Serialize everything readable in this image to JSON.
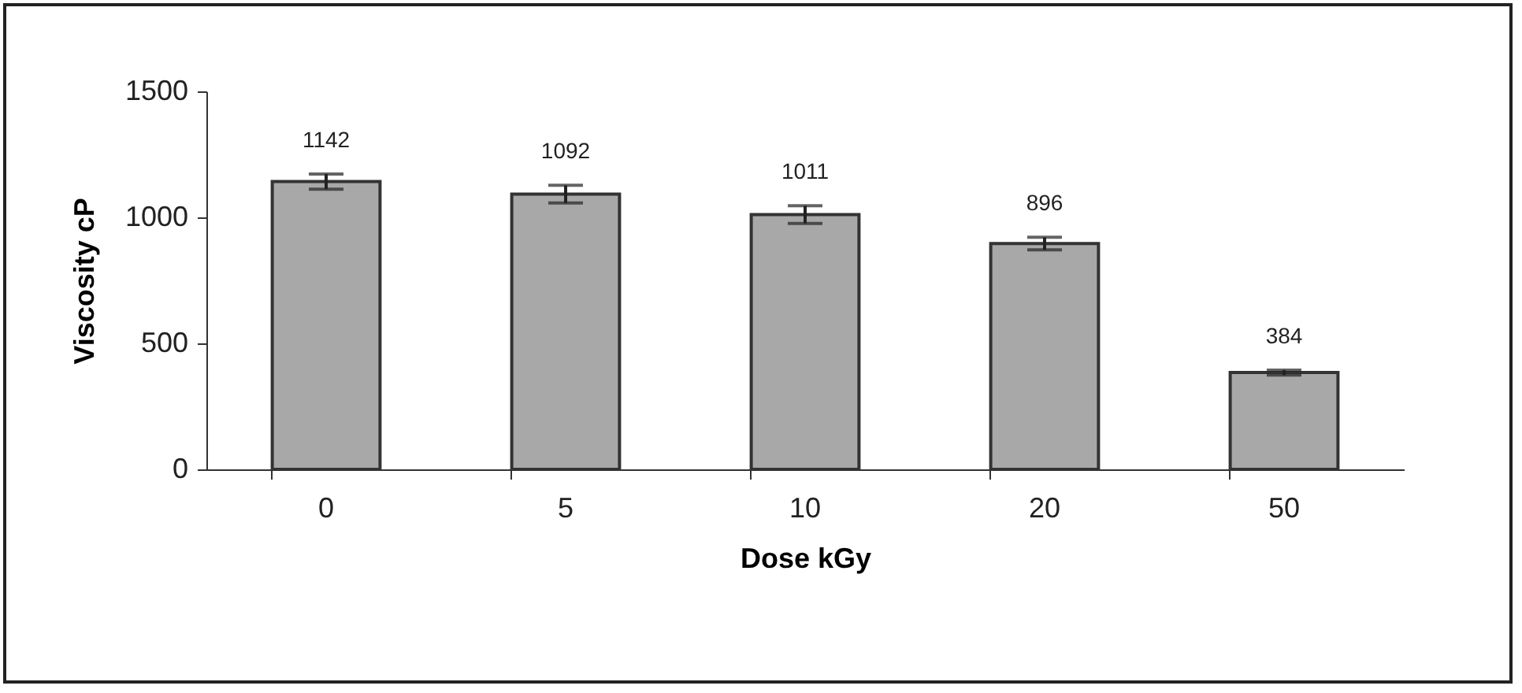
{
  "chart_data": {
    "type": "bar",
    "xlabel": "Dose kGy",
    "ylabel": "Viscosity cP",
    "categories": [
      "0",
      "5",
      "10",
      "20",
      "50"
    ],
    "values": [
      1142,
      1092,
      1011,
      896,
      384
    ],
    "errors": [
      30,
      35,
      35,
      25,
      10
    ],
    "color": "#a8a8a8",
    "ylim": [
      0,
      1500
    ],
    "yticks": [
      0,
      500,
      1000,
      1500
    ],
    "grid": false,
    "data_labels": true
  }
}
